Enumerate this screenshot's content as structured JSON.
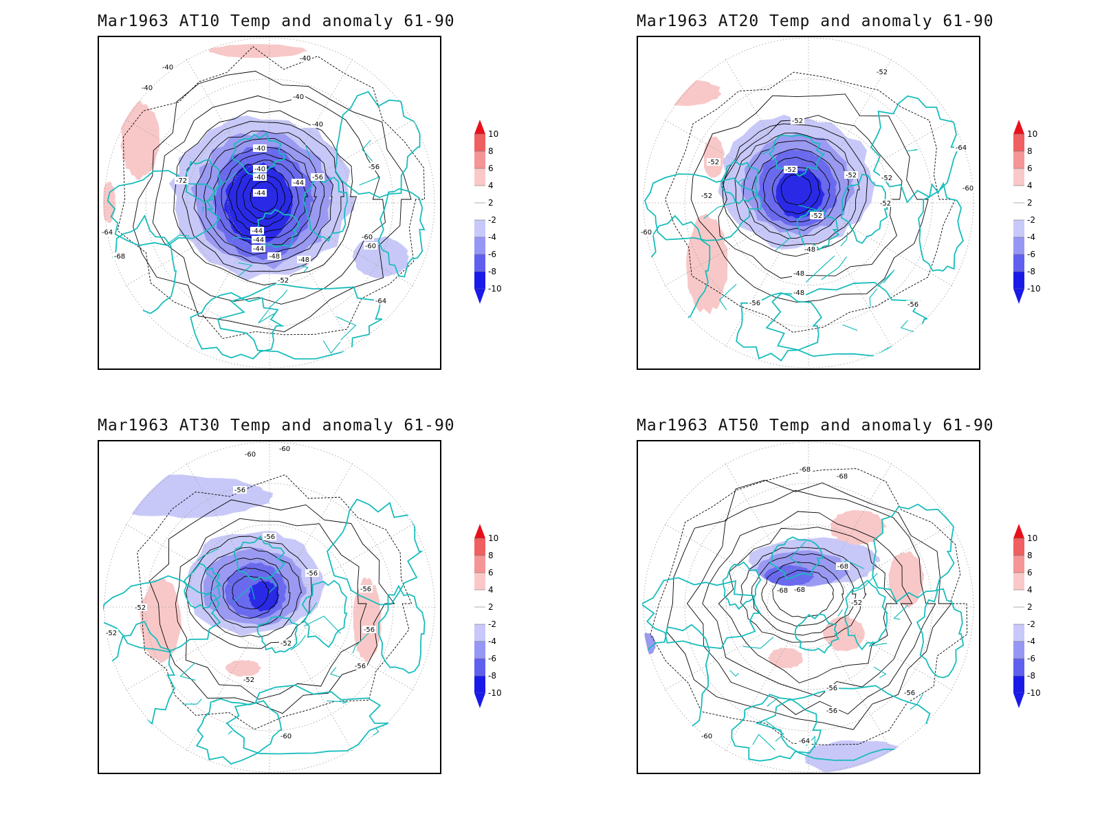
{
  "panels": [
    {
      "title": "Mar1963 AT10 Temp and anomaly 61-90",
      "contour_labels": [
        "-40",
        "-40",
        "-40",
        "-40",
        "-40",
        "-40",
        "-40",
        "-40",
        "-44",
        "-44",
        "-44",
        "-44",
        "-44",
        "-48",
        "-48",
        "-52",
        "-56",
        "-56",
        "-60",
        "-60",
        "-64",
        "-64",
        "-68",
        "-72"
      ],
      "anomaly_labels_note": ""
    },
    {
      "title": "Mar1963 AT20 Temp and anomaly 61-90",
      "contour_labels": [
        "-52",
        "-52",
        "-52",
        "-52",
        "-52",
        "-52",
        "-52",
        "-52",
        "-52",
        "-48",
        "-48",
        "-48",
        "-56",
        "-56",
        "-60",
        "-60",
        "-64"
      ]
    },
    {
      "title": "Mar1963 AT30 Temp and anomaly 61-90",
      "contour_labels": [
        "-60",
        "-60",
        "-56",
        "-56",
        "-56",
        "-56",
        "-56",
        "-56",
        "-52",
        "-52",
        "-52",
        "-52",
        "-60"
      ]
    },
    {
      "title": "Mar1963 AT50 Temp and anomaly 61-90",
      "contour_labels": [
        "-68",
        "-68",
        "-68",
        "-68",
        "-68",
        "-52",
        "-56",
        "-56",
        "-56",
        "-60",
        "-64"
      ]
    }
  ],
  "colorbar": {
    "labels": [
      "10",
      "8",
      "6",
      "4",
      "2",
      "-2",
      "-4",
      "-6",
      "-8",
      "-10"
    ],
    "colors": [
      "#e8101a",
      "#f06060",
      "#f59595",
      "#fac8c8",
      "#ffffff",
      "#ffffff",
      "#c8c8fa",
      "#9696f5",
      "#6060f0",
      "#1a1ae8"
    ]
  },
  "colors": {
    "coast": "#18bcbc",
    "contour": "#000000",
    "grid": "#9a9a9a",
    "warm": "#f8c8c8",
    "cold1": "#c8c8f8",
    "cold2": "#9a9af2",
    "cold3": "#6a6aee",
    "cold4": "#2a2ae6"
  }
}
